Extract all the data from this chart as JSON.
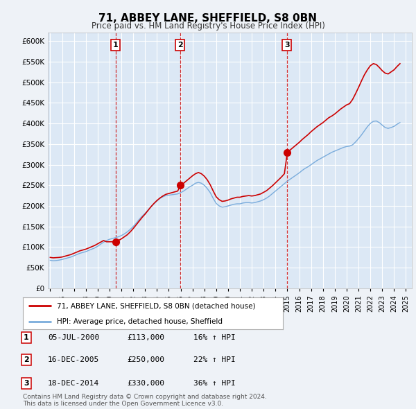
{
  "title": "71, ABBEY LANE, SHEFFIELD, S8 0BN",
  "subtitle": "Price paid vs. HM Land Registry's House Price Index (HPI)",
  "background_color": "#eef2f7",
  "plot_bg_color": "#dce8f5",
  "ylim": [
    0,
    620000
  ],
  "yticks": [
    0,
    50000,
    100000,
    150000,
    200000,
    250000,
    300000,
    350000,
    400000,
    450000,
    500000,
    550000,
    600000
  ],
  "xlim_start": 1994.8,
  "xlim_end": 2025.5,
  "sales": [
    {
      "label": "1",
      "year": 2000.51,
      "price": 113000
    },
    {
      "label": "2",
      "year": 2005.96,
      "price": 250000
    },
    {
      "label": "3",
      "year": 2014.96,
      "price": 330000
    }
  ],
  "sale_line_color": "#cc0000",
  "hpi_line_color": "#7aacdc",
  "legend_label_red": "71, ABBEY LANE, SHEFFIELD, S8 0BN (detached house)",
  "legend_label_blue": "HPI: Average price, detached house, Sheffield",
  "table_entries": [
    {
      "num": "1",
      "date": "05-JUL-2000",
      "price": "£113,000",
      "change": "16% ↑ HPI"
    },
    {
      "num": "2",
      "date": "16-DEC-2005",
      "price": "£250,000",
      "change": "22% ↑ HPI"
    },
    {
      "num": "3",
      "date": "18-DEC-2014",
      "price": "£330,000",
      "change": "36% ↑ HPI"
    }
  ],
  "footer_text": "Contains HM Land Registry data © Crown copyright and database right 2024.\nThis data is licensed under the Open Government Licence v3.0.",
  "hpi_data_x": [
    1995.0,
    1995.25,
    1995.5,
    1995.75,
    1996.0,
    1996.25,
    1996.5,
    1996.75,
    1997.0,
    1997.25,
    1997.5,
    1997.75,
    1998.0,
    1998.25,
    1998.5,
    1998.75,
    1999.0,
    1999.25,
    1999.5,
    1999.75,
    2000.0,
    2000.25,
    2000.5,
    2000.75,
    2001.0,
    2001.25,
    2001.5,
    2001.75,
    2002.0,
    2002.25,
    2002.5,
    2002.75,
    2003.0,
    2003.25,
    2003.5,
    2003.75,
    2004.0,
    2004.25,
    2004.5,
    2004.75,
    2005.0,
    2005.25,
    2005.5,
    2005.75,
    2006.0,
    2006.25,
    2006.5,
    2006.75,
    2007.0,
    2007.25,
    2007.5,
    2007.75,
    2008.0,
    2008.25,
    2008.5,
    2008.75,
    2009.0,
    2009.25,
    2009.5,
    2009.75,
    2010.0,
    2010.25,
    2010.5,
    2010.75,
    2011.0,
    2011.25,
    2011.5,
    2011.75,
    2012.0,
    2012.25,
    2012.5,
    2012.75,
    2013.0,
    2013.25,
    2013.5,
    2013.75,
    2014.0,
    2014.25,
    2014.5,
    2014.75,
    2015.0,
    2015.25,
    2015.5,
    2015.75,
    2016.0,
    2016.25,
    2016.5,
    2016.75,
    2017.0,
    2017.25,
    2017.5,
    2017.75,
    2018.0,
    2018.25,
    2018.5,
    2018.75,
    2019.0,
    2019.25,
    2019.5,
    2019.75,
    2020.0,
    2020.25,
    2020.5,
    2020.75,
    2021.0,
    2021.25,
    2021.5,
    2021.75,
    2022.0,
    2022.25,
    2022.5,
    2022.75,
    2023.0,
    2023.25,
    2023.5,
    2023.75,
    2024.0,
    2024.25,
    2024.5
  ],
  "hpi_data_y": [
    68000,
    67000,
    67500,
    68500,
    70000,
    72000,
    74000,
    76000,
    79000,
    82000,
    85000,
    87000,
    89000,
    92000,
    95000,
    98000,
    102000,
    107000,
    112000,
    116000,
    119000,
    121000,
    123000,
    125000,
    128000,
    132000,
    137000,
    143000,
    150000,
    158000,
    167000,
    175000,
    182000,
    190000,
    198000,
    205000,
    212000,
    218000,
    222000,
    225000,
    226000,
    227000,
    228000,
    229000,
    232000,
    236000,
    241000,
    246000,
    250000,
    255000,
    257000,
    255000,
    250000,
    242000,
    232000,
    218000,
    206000,
    200000,
    197000,
    198000,
    200000,
    202000,
    204000,
    205000,
    205000,
    207000,
    208000,
    208000,
    207000,
    208000,
    210000,
    212000,
    215000,
    219000,
    224000,
    230000,
    236000,
    242000,
    248000,
    254000,
    260000,
    265000,
    270000,
    275000,
    280000,
    286000,
    291000,
    295000,
    300000,
    305000,
    310000,
    314000,
    318000,
    322000,
    326000,
    330000,
    333000,
    336000,
    339000,
    342000,
    344000,
    345000,
    348000,
    355000,
    363000,
    372000,
    382000,
    392000,
    400000,
    405000,
    406000,
    402000,
    396000,
    390000,
    388000,
    390000,
    393000,
    398000,
    402000
  ],
  "price_data_x": [
    1995.0,
    1995.25,
    1995.5,
    1995.75,
    1996.0,
    1996.25,
    1996.5,
    1996.75,
    1997.0,
    1997.25,
    1997.5,
    1997.75,
    1998.0,
    1998.25,
    1998.5,
    1998.75,
    1999.0,
    1999.25,
    1999.5,
    1999.75,
    2000.0,
    2000.25,
    2000.5,
    2000.75,
    2001.0,
    2001.25,
    2001.5,
    2001.75,
    2002.0,
    2002.25,
    2002.5,
    2002.75,
    2003.0,
    2003.25,
    2003.5,
    2003.75,
    2004.0,
    2004.25,
    2004.5,
    2004.75,
    2005.0,
    2005.25,
    2005.5,
    2005.75,
    2006.0,
    2006.25,
    2006.5,
    2006.75,
    2007.0,
    2007.25,
    2007.5,
    2007.75,
    2008.0,
    2008.25,
    2008.5,
    2008.75,
    2009.0,
    2009.25,
    2009.5,
    2009.75,
    2010.0,
    2010.25,
    2010.5,
    2010.75,
    2011.0,
    2011.25,
    2011.5,
    2011.75,
    2012.0,
    2012.25,
    2012.5,
    2012.75,
    2013.0,
    2013.25,
    2013.5,
    2013.75,
    2014.0,
    2014.25,
    2014.5,
    2014.75,
    2015.0,
    2015.25,
    2015.5,
    2015.75,
    2016.0,
    2016.25,
    2016.5,
    2016.75,
    2017.0,
    2017.25,
    2017.5,
    2017.75,
    2018.0,
    2018.25,
    2018.5,
    2018.75,
    2019.0,
    2019.25,
    2019.5,
    2019.75,
    2020.0,
    2020.25,
    2020.5,
    2020.75,
    2021.0,
    2021.25,
    2021.5,
    2021.75,
    2022.0,
    2022.25,
    2022.5,
    2022.75,
    2023.0,
    2023.25,
    2023.5,
    2023.75,
    2024.0,
    2024.25,
    2024.5
  ],
  "price_data_y": [
    75000,
    74000,
    74500,
    75000,
    76000,
    78000,
    80000,
    82000,
    85000,
    88000,
    91000,
    93000,
    95000,
    98000,
    101000,
    104000,
    108000,
    112000,
    116000,
    113000,
    113000,
    113000,
    113000,
    116000,
    120000,
    125000,
    130000,
    137000,
    145000,
    154000,
    163000,
    172000,
    180000,
    189000,
    198000,
    206000,
    213000,
    219000,
    224000,
    228000,
    230000,
    232000,
    234000,
    236000,
    250000,
    255000,
    261000,
    267000,
    273000,
    278000,
    281000,
    278000,
    272000,
    263000,
    251000,
    236000,
    222000,
    215000,
    211000,
    212000,
    214000,
    217000,
    219000,
    221000,
    221000,
    223000,
    224000,
    225000,
    224000,
    225000,
    227000,
    229000,
    233000,
    237000,
    243000,
    249000,
    256000,
    263000,
    270000,
    278000,
    330000,
    336000,
    342000,
    348000,
    354000,
    361000,
    367000,
    373000,
    380000,
    386000,
    392000,
    397000,
    402000,
    408000,
    414000,
    418000,
    423000,
    429000,
    435000,
    440000,
    445000,
    448000,
    458000,
    472000,
    487000,
    503000,
    518000,
    530000,
    540000,
    545000,
    543000,
    536000,
    528000,
    522000,
    520000,
    525000,
    530000,
    538000,
    545000
  ]
}
